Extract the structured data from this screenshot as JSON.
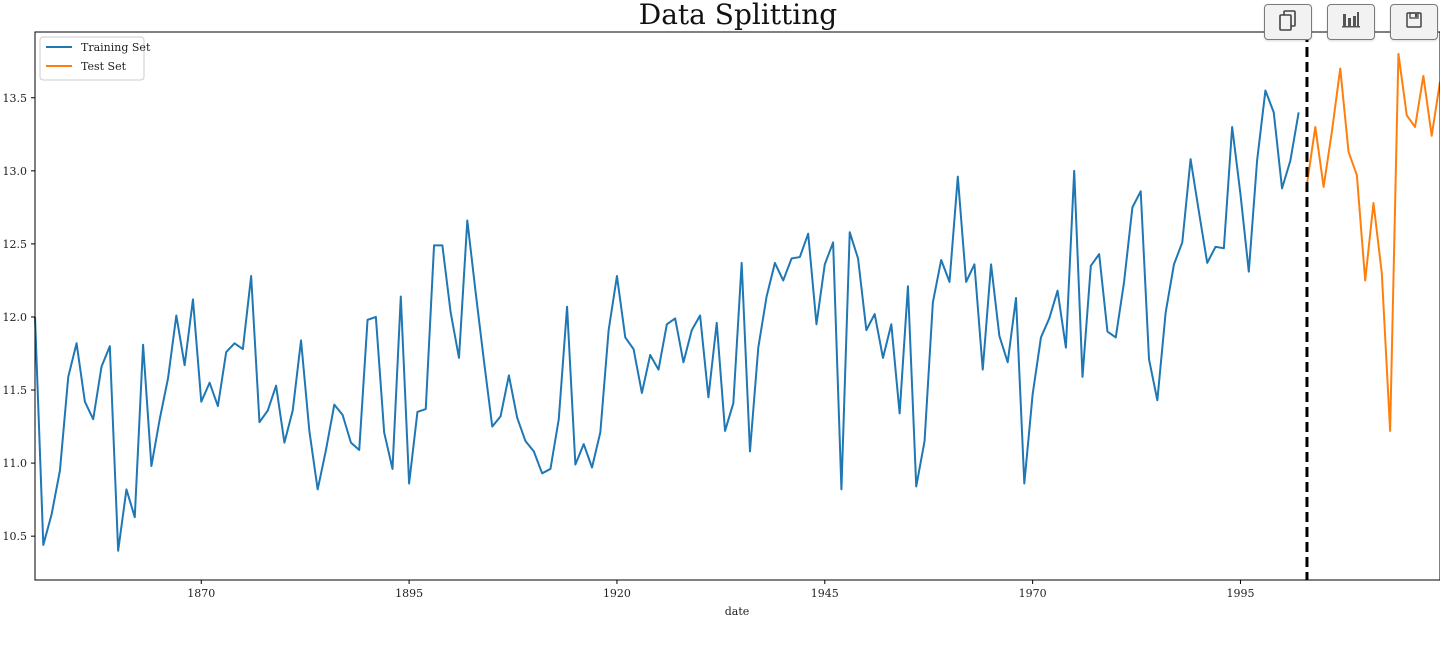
{
  "chart_data": {
    "type": "line",
    "title": "Data Splitting",
    "xlabel": "date",
    "ylabel": "",
    "xlim": [
      1850,
      2019
    ],
    "ylim": [
      10.2,
      13.95
    ],
    "x_ticks": [
      1870,
      1895,
      1920,
      1945,
      1970,
      1995
    ],
    "y_ticks": [
      10.5,
      11.0,
      11.5,
      12.0,
      12.5,
      13.0,
      13.5
    ],
    "y_tick_labels": [
      "10.5",
      "11.0",
      "11.5",
      "12.0",
      "12.5",
      "13.0",
      "13.5"
    ],
    "legend_position": "top-left",
    "grid": false,
    "split_line": {
      "x": 2003,
      "style": "dashed",
      "color": "#000000"
    },
    "series": [
      {
        "name": "Training Set",
        "color": "#1f77b4",
        "start_year": 1850,
        "values": [
          12.0,
          10.44,
          10.65,
          10.95,
          11.59,
          11.82,
          11.42,
          11.3,
          11.66,
          11.8,
          10.4,
          10.82,
          10.63,
          11.81,
          10.98,
          11.3,
          11.58,
          12.01,
          11.67,
          12.12,
          11.42,
          11.55,
          11.39,
          11.76,
          11.82,
          11.78,
          12.28,
          11.28,
          11.36,
          11.53,
          11.14,
          11.36,
          11.84,
          11.22,
          10.82,
          11.09,
          11.4,
          11.33,
          11.14,
          11.09,
          11.98,
          12.0,
          11.21,
          10.96,
          12.14,
          10.86,
          11.35,
          11.37,
          12.49,
          12.49,
          12.03,
          11.72,
          12.66,
          12.17,
          11.7,
          11.25,
          11.32,
          11.6,
          11.31,
          11.15,
          11.08,
          10.93,
          10.96,
          11.3,
          12.07,
          10.99,
          11.13,
          10.97,
          11.21,
          11.91,
          12.28,
          11.86,
          11.78,
          11.48,
          11.74,
          11.64,
          11.95,
          11.99,
          11.69,
          11.91,
          12.01,
          11.45,
          11.96,
          11.22,
          11.41,
          12.37,
          11.08,
          11.79,
          12.14,
          12.37,
          12.25,
          12.4,
          12.41,
          12.57,
          11.95,
          12.36,
          12.51,
          10.82,
          12.58,
          12.4,
          11.91,
          12.02,
          11.72,
          11.95,
          11.34,
          12.21,
          10.84,
          11.15,
          12.1,
          12.39,
          12.24,
          12.96,
          12.24,
          12.36,
          11.64,
          12.36,
          11.87,
          11.69,
          12.13,
          10.86,
          11.47,
          11.86,
          11.99,
          12.18,
          11.79,
          13.0,
          11.59,
          12.35,
          12.43,
          11.9,
          11.86,
          12.24,
          12.75,
          12.86,
          11.71,
          11.43,
          12.03,
          12.36,
          12.51,
          13.08,
          12.72,
          12.37,
          12.48,
          12.47,
          13.3,
          12.84,
          12.31,
          13.07,
          13.55,
          13.4,
          12.88,
          13.07,
          13.4
        ]
      },
      {
        "name": "Test Set",
        "color": "#ff7f0e",
        "start_year": 2003,
        "values": [
          12.91,
          13.3,
          12.89,
          13.27,
          13.7,
          13.13,
          12.97,
          12.25,
          12.78,
          12.3,
          11.22,
          13.8,
          13.38,
          13.3,
          13.65,
          13.24,
          13.61
        ]
      }
    ]
  },
  "toolbar": {
    "buttons": [
      {
        "name": "copy",
        "icon": "copy-icon"
      },
      {
        "name": "chart",
        "icon": "bar-chart-icon"
      },
      {
        "name": "save",
        "icon": "save-icon"
      }
    ]
  }
}
